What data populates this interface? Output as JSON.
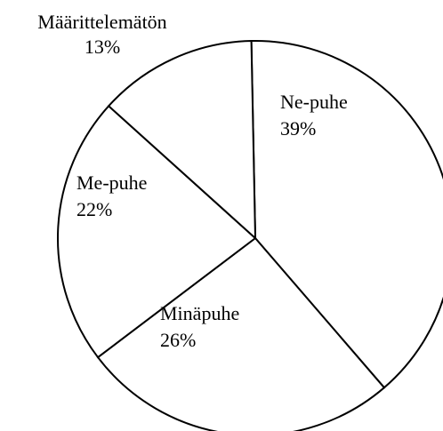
{
  "chart_data": {
    "type": "pie",
    "categories": [
      "Ne-puhe",
      "Minäpuhe",
      "Me-puhe",
      "Määrittelemätön"
    ],
    "values": [
      39,
      26,
      22,
      13
    ],
    "value_labels": [
      "39%",
      "26%",
      "22%",
      "13%"
    ],
    "color": "#ffffff"
  }
}
